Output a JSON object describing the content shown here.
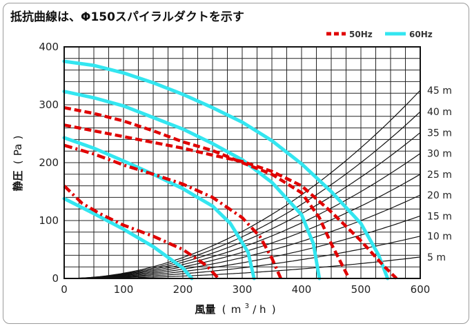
{
  "chart_data": {
    "type": "line",
    "title": "抵抗曲線は、Φ150スパイラルダクトを示す",
    "xlabel_main": "風量",
    "xlabel_unit_open": "(",
    "xlabel_unit": "m",
    "xlabel_unit_sup": "3",
    "xlabel_unit_tail": "/ h",
    "xlabel_unit_close": ")",
    "ylabel_main": "静圧",
    "ylabel_unit_open": "(",
    "ylabel_unit": "Pa",
    "ylabel_unit_close": ")",
    "xlim": [
      0,
      600
    ],
    "ylim": [
      0,
      400
    ],
    "x_ticks": [
      {
        "value": 0,
        "label": "0"
      },
      {
        "value": 100,
        "label": "100"
      },
      {
        "value": 200,
        "label": "200"
      },
      {
        "value": 300,
        "label": "300"
      },
      {
        "value": 400,
        "label": "400"
      },
      {
        "value": 500,
        "label": "500"
      },
      {
        "value": 600,
        "label": "600"
      }
    ],
    "y_ticks": [
      {
        "value": 0,
        "label": "0"
      },
      {
        "value": 100,
        "label": "100"
      },
      {
        "value": 200,
        "label": "200"
      },
      {
        "value": 300,
        "label": "300"
      },
      {
        "value": 400,
        "label": "400"
      }
    ],
    "grid": {
      "x_step": 25,
      "y_step": 20
    },
    "legend": {
      "placement": "top-right",
      "items": [
        {
          "label": "50Hz",
          "color": "#e00000",
          "style": "dashed"
        },
        {
          "label": "60Hz",
          "color": "#33e6f0",
          "style": "solid"
        }
      ]
    },
    "resistance_curves": [
      {
        "label": "5 m",
        "value_at_600": 37
      },
      {
        "label": "10 m",
        "value_at_600": 73
      },
      {
        "label": "15 m",
        "value_at_600": 108
      },
      {
        "label": "20 m",
        "value_at_600": 144
      },
      {
        "label": "25 m",
        "value_at_600": 180
      },
      {
        "label": "30 m",
        "value_at_600": 216
      },
      {
        "label": "35 m",
        "value_at_600": 252
      },
      {
        "label": "40 m",
        "value_at_600": 288
      },
      {
        "label": "45 m",
        "value_at_600": 325
      }
    ],
    "series_50hz": [
      {
        "style": "dashed",
        "points": [
          [
            0,
            295
          ],
          [
            50,
            285
          ],
          [
            100,
            272
          ],
          [
            150,
            255
          ],
          [
            200,
            236
          ],
          [
            250,
            221
          ],
          [
            300,
            200
          ],
          [
            350,
            180
          ],
          [
            400,
            148
          ],
          [
            430,
            105
          ],
          [
            450,
            60
          ],
          [
            470,
            20
          ],
          [
            480,
            0
          ]
        ]
      },
      {
        "style": "dashed",
        "points": [
          [
            0,
            265
          ],
          [
            50,
            255
          ],
          [
            100,
            245
          ],
          [
            150,
            235
          ],
          [
            200,
            225
          ],
          [
            250,
            213
          ],
          [
            300,
            202
          ],
          [
            350,
            185
          ],
          [
            400,
            160
          ],
          [
            450,
            115
          ],
          [
            500,
            65
          ],
          [
            540,
            20
          ],
          [
            560,
            0
          ]
        ]
      },
      {
        "style": "dashdot",
        "points": [
          [
            0,
            230
          ],
          [
            50,
            215
          ],
          [
            100,
            196
          ],
          [
            150,
            180
          ],
          [
            200,
            163
          ],
          [
            250,
            140
          ],
          [
            300,
            105
          ],
          [
            330,
            72
          ],
          [
            350,
            35
          ],
          [
            365,
            0
          ]
        ]
      },
      {
        "style": "dashdot",
        "points": [
          [
            0,
            160
          ],
          [
            30,
            130
          ],
          [
            60,
            112
          ],
          [
            100,
            92
          ],
          [
            150,
            73
          ],
          [
            200,
            50
          ],
          [
            240,
            22
          ],
          [
            260,
            0
          ]
        ]
      }
    ],
    "series_60hz": [
      {
        "points": [
          [
            0,
            375
          ],
          [
            50,
            368
          ],
          [
            100,
            355
          ],
          [
            150,
            338
          ],
          [
            200,
            318
          ],
          [
            250,
            295
          ],
          [
            300,
            270
          ],
          [
            350,
            238
          ],
          [
            400,
            198
          ],
          [
            450,
            150
          ],
          [
            500,
            95
          ],
          [
            530,
            40
          ],
          [
            545,
            0
          ]
        ]
      },
      {
        "points": [
          [
            0,
            323
          ],
          [
            50,
            312
          ],
          [
            100,
            298
          ],
          [
            150,
            278
          ],
          [
            200,
            258
          ],
          [
            250,
            233
          ],
          [
            300,
            205
          ],
          [
            350,
            166
          ],
          [
            400,
            110
          ],
          [
            420,
            60
          ],
          [
            430,
            0
          ]
        ]
      },
      {
        "points": [
          [
            0,
            243
          ],
          [
            50,
            225
          ],
          [
            100,
            203
          ],
          [
            150,
            180
          ],
          [
            200,
            155
          ],
          [
            250,
            125
          ],
          [
            280,
            95
          ],
          [
            310,
            45
          ],
          [
            320,
            0
          ]
        ]
      },
      {
        "points": [
          [
            0,
            138
          ],
          [
            50,
            112
          ],
          [
            100,
            85
          ],
          [
            150,
            55
          ],
          [
            200,
            18
          ],
          [
            215,
            0
          ]
        ]
      }
    ]
  }
}
